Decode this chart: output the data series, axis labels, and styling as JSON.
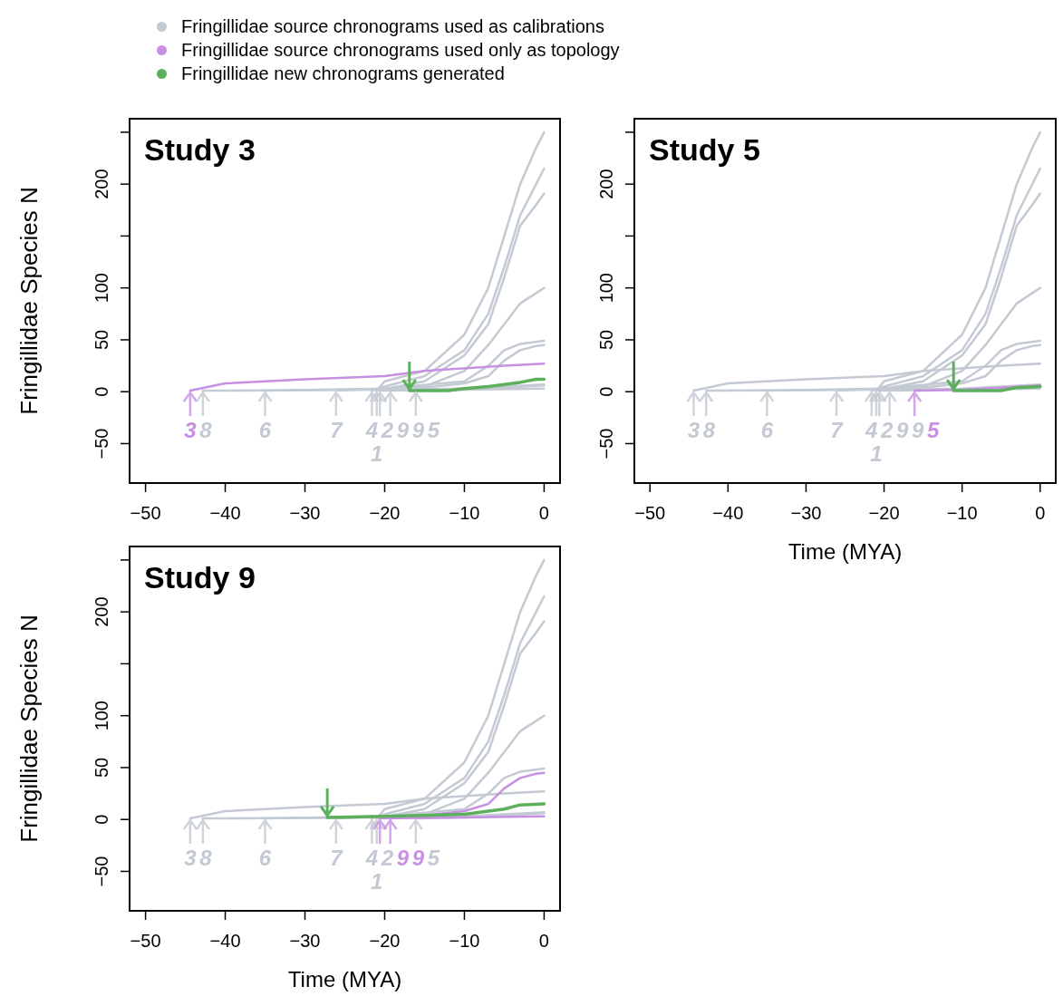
{
  "chart_data": [
    {
      "type": "line",
      "title": "Study 3",
      "ylabel": "Fringillidae Species N",
      "legend": "top",
      "marker": "none",
      "xlim": [
        -52,
        2
      ],
      "ylim": [
        -88,
        263
      ],
      "xticks": [
        {
          "value": -50,
          "label": "−50"
        },
        {
          "value": -40,
          "label": "−40"
        },
        {
          "value": -30,
          "label": "−30"
        },
        {
          "value": -20,
          "label": "−20"
        },
        {
          "value": -10,
          "label": "−10"
        },
        {
          "value": 0,
          "label": "0"
        }
      ],
      "yticks": [
        {
          "value": -50,
          "label": "−50"
        },
        0,
        50,
        100,
        {
          "value": 150,
          "label": null
        },
        200,
        {
          "value": 250,
          "label": null
        }
      ],
      "annotations": [
        {
          "text": "3",
          "x": -44.4,
          "y": 1
        },
        {
          "text": "8",
          "x": -42.8,
          "y": 1
        },
        {
          "text": "6",
          "x": -35,
          "y": 1
        },
        {
          "text": "7",
          "x": -26.1,
          "y": 1
        },
        {
          "text": "4",
          "x": -21.6,
          "y": 1
        },
        {
          "text": "2",
          "x": -21,
          "y": 1
        },
        {
          "text": "1",
          "x": -21,
          "y": 1
        },
        {
          "text": "9",
          "x": -20.6,
          "y": 1
        },
        {
          "text": "9",
          "x": -19.3,
          "y": 1
        },
        {
          "text": "5",
          "x": -16.1,
          "y": 1
        }
      ],
      "series": [
        {
          "name": "Fringillidae source chronograms used as calibrations",
          "color": "#c4cad3",
          "x": [
            -21,
            -20,
            -15,
            -10,
            -7,
            -5,
            -3,
            -1,
            0
          ],
          "values": [
            1,
            10,
            20,
            55,
            100,
            150,
            200,
            235,
            250
          ]
        },
        {
          "color": "#c4cad3",
          "x": [
            -21.6,
            -20,
            -15,
            -10,
            -7,
            -5,
            -3,
            -1,
            0
          ],
          "values": [
            1,
            5,
            15,
            40,
            75,
            120,
            170,
            200,
            215
          ]
        },
        {
          "color": "#c4cad3",
          "x": [
            -21,
            -15,
            -10,
            -7,
            -5,
            -3,
            -1,
            0
          ],
          "values": [
            1,
            10,
            35,
            65,
            110,
            160,
            180,
            191
          ]
        },
        {
          "color": "#c4cad3",
          "x": [
            -26.1,
            -15,
            -10,
            -7,
            -5,
            -3,
            -1,
            0
          ],
          "values": [
            1,
            5,
            20,
            45,
            65,
            85,
            95,
            100
          ]
        },
        {
          "color": "#c4cad3",
          "x": [
            -35,
            -20,
            -10,
            -7,
            -5,
            -3,
            0
          ],
          "values": [
            1,
            3,
            10,
            25,
            40,
            46,
            49
          ]
        },
        {
          "color": "#c4cad3",
          "x": [
            -19.3,
            -15,
            -10,
            -7,
            -5,
            -3,
            -1,
            0
          ],
          "values": [
            1,
            4,
            8,
            15,
            30,
            40,
            44,
            45
          ]
        },
        {
          "color": "#c4cad3",
          "x": [
            -42.8,
            -20,
            -10,
            -5,
            0
          ],
          "values": [
            1,
            2,
            3,
            5,
            7
          ]
        },
        {
          "color": "#c4cad3",
          "x": [
            -20.6,
            -10,
            0
          ],
          "values": [
            1,
            2,
            3
          ]
        },
        {
          "color": "#c4cad3",
          "x": [
            -16.1,
            -10,
            -5,
            0
          ],
          "values": [
            1,
            2,
            4,
            6
          ]
        },
        {
          "name": "Fringillidae source chronograms used only as topology",
          "color": "#c890e2",
          "x": [
            -44.4,
            -40,
            -30,
            -20,
            -15,
            -5,
            0
          ],
          "values": [
            1,
            8,
            12,
            15,
            20,
            25,
            27
          ]
        },
        {
          "name": "Fringillidae new chronograms generated",
          "color": "#5cb05c",
          "x": [
            -16.9,
            -12,
            -10,
            -7,
            -5,
            -3,
            -1,
            0
          ],
          "values": [
            1,
            1,
            3,
            5,
            7,
            9,
            12,
            12
          ]
        }
      ]
    },
    {
      "type": "line",
      "title": "Study 5",
      "xlabel": "Time (MYA)",
      "marker": "none",
      "xlim": [
        -52,
        2
      ],
      "ylim": [
        -88,
        263
      ],
      "xticks": [
        {
          "value": -50,
          "label": "−50"
        },
        {
          "value": -40,
          "label": "−40"
        },
        {
          "value": -30,
          "label": "−30"
        },
        {
          "value": -20,
          "label": "−20"
        },
        {
          "value": -10,
          "label": "−10"
        },
        {
          "value": 0,
          "label": "0"
        }
      ],
      "yticks": [
        {
          "value": -50,
          "label": "−50"
        },
        0,
        50,
        100,
        {
          "value": 150,
          "label": null
        },
        200,
        {
          "value": 250,
          "label": null
        }
      ],
      "annotations": [
        {
          "text": "3",
          "x": -44.4,
          "y": 1
        },
        {
          "text": "8",
          "x": -42.8,
          "y": 1
        },
        {
          "text": "6",
          "x": -35,
          "y": 1
        },
        {
          "text": "7",
          "x": -26.1,
          "y": 1
        },
        {
          "text": "4",
          "x": -21.6,
          "y": 1
        },
        {
          "text": "2",
          "x": -21,
          "y": 1
        },
        {
          "text": "1",
          "x": -21,
          "y": 1
        },
        {
          "text": "9",
          "x": -20.6,
          "y": 1
        },
        {
          "text": "9",
          "x": -19.3,
          "y": 1
        },
        {
          "text": "5",
          "x": -16.1,
          "y": 1
        }
      ],
      "series": [
        {
          "color": "#c4cad3",
          "x": [
            -21,
            -20,
            -15,
            -10,
            -7,
            -5,
            -3,
            -1,
            0
          ],
          "values": [
            1,
            10,
            20,
            55,
            100,
            150,
            200,
            235,
            250
          ]
        },
        {
          "color": "#c4cad3",
          "x": [
            -21.6,
            -20,
            -15,
            -10,
            -7,
            -5,
            -3,
            -1,
            0
          ],
          "values": [
            1,
            5,
            15,
            40,
            75,
            120,
            170,
            200,
            215
          ]
        },
        {
          "color": "#c4cad3",
          "x": [
            -21,
            -15,
            -10,
            -7,
            -5,
            -3,
            -1,
            0
          ],
          "values": [
            1,
            10,
            35,
            65,
            110,
            160,
            180,
            191
          ]
        },
        {
          "color": "#c4cad3",
          "x": [
            -26.1,
            -15,
            -10,
            -7,
            -5,
            -3,
            -1,
            0
          ],
          "values": [
            1,
            5,
            20,
            45,
            65,
            85,
            95,
            100
          ]
        },
        {
          "color": "#c4cad3",
          "x": [
            -35,
            -20,
            -10,
            -7,
            -5,
            -3,
            0
          ],
          "values": [
            1,
            3,
            10,
            25,
            40,
            46,
            49
          ]
        },
        {
          "color": "#c4cad3",
          "x": [
            -19.3,
            -15,
            -10,
            -7,
            -5,
            -3,
            -1,
            0
          ],
          "values": [
            1,
            4,
            8,
            15,
            30,
            40,
            44,
            45
          ]
        },
        {
          "color": "#c4cad3",
          "x": [
            -42.8,
            -20,
            -10,
            -5,
            0
          ],
          "values": [
            1,
            2,
            3,
            5,
            7
          ]
        },
        {
          "color": "#c4cad3",
          "x": [
            -20.6,
            -10,
            0
          ],
          "values": [
            1,
            2,
            3
          ]
        },
        {
          "color": "#c4cad3",
          "x": [
            -44.4,
            -40,
            -30,
            -20,
            -15,
            -5,
            0
          ],
          "values": [
            1,
            8,
            12,
            15,
            20,
            25,
            27
          ]
        },
        {
          "color": "#c890e2",
          "x": [
            -16.1,
            -10,
            -5,
            0
          ],
          "values": [
            1,
            2,
            4,
            6
          ]
        },
        {
          "color": "#5cb05c",
          "x": [
            -11.1,
            -5,
            -3,
            0
          ],
          "values": [
            1,
            1,
            4,
            5
          ]
        }
      ]
    },
    {
      "type": "line",
      "title": "Study 9",
      "xlabel": "Time (MYA)",
      "ylabel": "Fringillidae Species N",
      "marker": "none",
      "xlim": [
        -52,
        2
      ],
      "ylim": [
        -88,
        263
      ],
      "xticks": [
        {
          "value": -50,
          "label": "−50"
        },
        {
          "value": -40,
          "label": "−40"
        },
        {
          "value": -30,
          "label": "−30"
        },
        {
          "value": -20,
          "label": "−20"
        },
        {
          "value": -10,
          "label": "−10"
        },
        {
          "value": 0,
          "label": "0"
        }
      ],
      "yticks": [
        {
          "value": -50,
          "label": "−50"
        },
        0,
        50,
        100,
        {
          "value": 150,
          "label": null
        },
        200,
        {
          "value": 250,
          "label": null
        }
      ],
      "annotations": [
        {
          "text": "3",
          "x": -44.4,
          "y": 1
        },
        {
          "text": "8",
          "x": -42.8,
          "y": 1
        },
        {
          "text": "6",
          "x": -35,
          "y": 1
        },
        {
          "text": "7",
          "x": -26.1,
          "y": 1
        },
        {
          "text": "4",
          "x": -21.6,
          "y": 1
        },
        {
          "text": "2",
          "x": -21,
          "y": 1
        },
        {
          "text": "1",
          "x": -21,
          "y": 1
        },
        {
          "text": "9",
          "x": -20.6,
          "y": 1
        },
        {
          "text": "9",
          "x": -19.3,
          "y": 1
        },
        {
          "text": "5",
          "x": -16.1,
          "y": 1
        }
      ],
      "series": [
        {
          "color": "#c4cad3",
          "x": [
            -21,
            -20,
            -15,
            -10,
            -7,
            -5,
            -3,
            -1,
            0
          ],
          "values": [
            1,
            10,
            20,
            55,
            100,
            150,
            200,
            235,
            250
          ]
        },
        {
          "color": "#c4cad3",
          "x": [
            -21.6,
            -20,
            -15,
            -10,
            -7,
            -5,
            -3,
            -1,
            0
          ],
          "values": [
            1,
            5,
            15,
            40,
            75,
            120,
            170,
            200,
            215
          ]
        },
        {
          "color": "#c4cad3",
          "x": [
            -21,
            -15,
            -10,
            -7,
            -5,
            -3,
            -1,
            0
          ],
          "values": [
            1,
            10,
            35,
            65,
            110,
            160,
            180,
            191
          ]
        },
        {
          "color": "#c4cad3",
          "x": [
            -26.1,
            -15,
            -10,
            -7,
            -5,
            -3,
            -1,
            0
          ],
          "values": [
            1,
            5,
            20,
            45,
            65,
            85,
            95,
            100
          ]
        },
        {
          "color": "#c4cad3",
          "x": [
            -35,
            -20,
            -10,
            -7,
            -5,
            -3,
            0
          ],
          "values": [
            1,
            3,
            10,
            25,
            40,
            46,
            49
          ]
        },
        {
          "color": "#c4cad3",
          "x": [
            -42.8,
            -20,
            -10,
            -5,
            0
          ],
          "values": [
            1,
            2,
            3,
            5,
            7
          ]
        },
        {
          "color": "#c4cad3",
          "x": [
            -44.4,
            -40,
            -30,
            -20,
            -15,
            -5,
            0
          ],
          "values": [
            1,
            8,
            12,
            15,
            20,
            25,
            27
          ]
        },
        {
          "color": "#c4cad3",
          "x": [
            -16.1,
            -10,
            -5,
            0
          ],
          "values": [
            1,
            2,
            4,
            6
          ]
        },
        {
          "color": "#c890e2",
          "x": [
            -19.3,
            -15,
            -10,
            -7,
            -5,
            -3,
            -1,
            0
          ],
          "values": [
            1,
            4,
            8,
            15,
            30,
            40,
            44,
            45
          ]
        },
        {
          "color": "#c890e2",
          "x": [
            -20.6,
            -10,
            0
          ],
          "values": [
            1,
            2,
            3
          ]
        },
        {
          "color": "#5cb05c",
          "x": [
            -27.2,
            -20,
            -15,
            -10,
            -7,
            -5,
            -3,
            0
          ],
          "values": [
            2,
            3,
            4,
            5,
            8,
            10,
            14,
            15
          ]
        }
      ]
    }
  ]
}
